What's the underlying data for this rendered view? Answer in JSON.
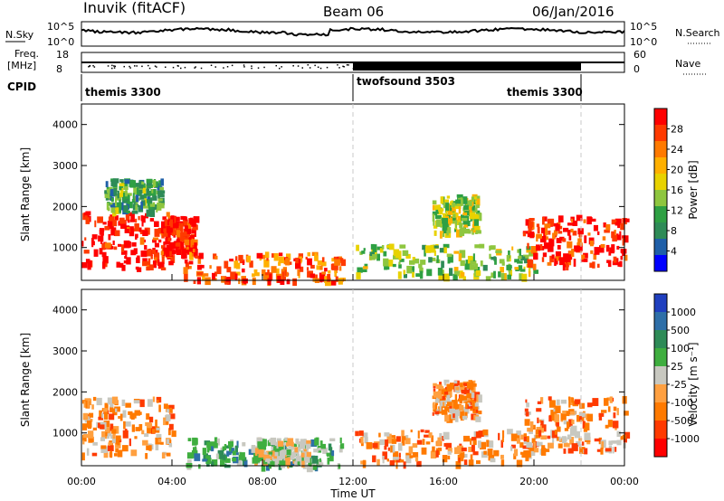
{
  "header": {
    "station": "Inuvik (fitACF)",
    "beam": "Beam 06",
    "date": "06/Jan/2016"
  },
  "aux_panels": {
    "nsky_label": "N.Sky",
    "nsky_ticks": [
      "10^5",
      "10^0"
    ],
    "nsearch_label": "N.Search",
    "nsearch_ticks": [
      "10^5",
      "10^0"
    ],
    "freq_label_1": "Freq.",
    "freq_label_2": "[MHz]",
    "freq_ticks": [
      "18",
      "8"
    ],
    "nave_label": "Nave",
    "nave_ticks": [
      "60",
      "0"
    ],
    "cpid_label": "CPID",
    "cpid_segments": [
      {
        "name": "themis 3300",
        "start_hour": 0,
        "end_hour": 12
      },
      {
        "name": "twofsound 3503",
        "start_hour": 12,
        "end_hour": 22
      },
      {
        "name": "themis 3300",
        "start_hour": 18,
        "end_hour": 22
      }
    ]
  },
  "chart_data": [
    {
      "type": "heatmap",
      "name": "power",
      "ylabel": "Slant Range [km]",
      "yticks": [
        "1000",
        "2000",
        "3000",
        "4000"
      ],
      "ylim": [
        200,
        4500
      ],
      "xlim_hours": [
        0,
        24
      ],
      "colorbar_label": "Power [dB]",
      "colorbar_ticks": [
        "28",
        "24",
        "20",
        "16",
        "12",
        "8",
        "4"
      ],
      "colorbar_colors": [
        "#ff0000",
        "#ff3a00",
        "#ff7a00",
        "#ffb000",
        "#e8d200",
        "#8ec63f",
        "#2ea043",
        "#2e8b57",
        "#1f5fa8",
        "#0000ff"
      ],
      "echo_regions": [
        {
          "h0": 0.0,
          "h1": 4.0,
          "r0": 500,
          "r1": 1900,
          "level": 0.95
        },
        {
          "h0": 3.5,
          "h1": 5.0,
          "r0": 900,
          "r1": 1800,
          "level": 0.9
        },
        {
          "h0": 4.5,
          "h1": 11.5,
          "r0": 200,
          "r1": 900,
          "level": 0.8
        },
        {
          "h0": 12.0,
          "h1": 20.0,
          "r0": 300,
          "r1": 1100,
          "level": 0.45
        },
        {
          "h0": 19.5,
          "h1": 24.0,
          "r0": 600,
          "r1": 1800,
          "level": 0.9
        },
        {
          "h0": 15.5,
          "h1": 17.5,
          "r0": 1400,
          "r1": 2300,
          "level": 0.5
        },
        {
          "h0": 1.0,
          "h1": 3.5,
          "r0": 1900,
          "r1": 2700,
          "level": 0.35
        }
      ]
    },
    {
      "type": "heatmap",
      "name": "velocity",
      "ylabel": "Slant Range [km]",
      "yticks": [
        "1000",
        "2000",
        "3000",
        "4000"
      ],
      "ylim": [
        200,
        4500
      ],
      "xlim_hours": [
        0,
        24
      ],
      "xticks": [
        "00:00",
        "04:00",
        "08:00",
        "12:00",
        "16:00",
        "20:00",
        "00:00"
      ],
      "xlabel": "Time UT",
      "colorbar_label": "Velocity [m s⁻¹]",
      "colorbar_ticks": [
        "1000",
        "500",
        "100",
        "25",
        "-25",
        "-100",
        "-500",
        "-1000"
      ],
      "colorbar_colors": [
        "#1f3fbf",
        "#2e6fa8",
        "#2e8b57",
        "#3fae3f",
        "#c8c8c0",
        "#ffa040",
        "#ff7a00",
        "#ff3a00",
        "#ff0000"
      ],
      "echo_regions": [
        {
          "h0": 0.0,
          "h1": 4.0,
          "r0": 500,
          "r1": 1900,
          "v": "neg"
        },
        {
          "h0": 4.5,
          "h1": 11.5,
          "r0": 200,
          "r1": 900,
          "v": "pos"
        },
        {
          "h0": 12.0,
          "h1": 20.0,
          "r0": 300,
          "r1": 1100,
          "v": "neg"
        },
        {
          "h0": 19.5,
          "h1": 24.0,
          "r0": 600,
          "r1": 1900,
          "v": "neg"
        },
        {
          "h0": 15.5,
          "h1": 17.5,
          "r0": 1400,
          "r1": 2300,
          "v": "neg"
        },
        {
          "h0": 7.5,
          "h1": 10.0,
          "r0": 300,
          "r1": 900,
          "v": "zero"
        }
      ]
    }
  ],
  "colors": {
    "axis": "#000000",
    "divider": "#c8c8c8"
  }
}
